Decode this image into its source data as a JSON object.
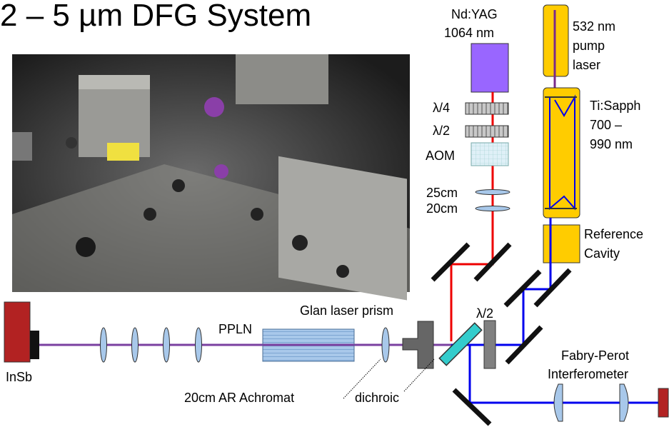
{
  "title": "2 – 5 µm DFG System",
  "labels": {
    "ndyag_line1": "Nd:YAG",
    "ndyag_line2": "1064 nm",
    "pump_line1": "532 nm",
    "pump_line2": "pump",
    "pump_line3": "laser",
    "tisapph_line1": "Ti:Sapph",
    "tisapph_line2": "700 –",
    "tisapph_line3": "990 nm",
    "quarter_wave": "λ/4",
    "half_wave_top": "λ/2",
    "aom": "AOM",
    "lens_25cm": "25cm",
    "lens_20cm": "20cm",
    "ref_cavity_line1": "Reference",
    "ref_cavity_line2": "Cavity",
    "glan_prism": "Glan laser prism",
    "half_wave_bottom": "λ/2",
    "ppln": "PPLN",
    "insb": "InSb",
    "achromat": "20cm AR Achromat",
    "dichroic": "dichroic",
    "fabry_perot_line1": "Fabry-Perot",
    "fabry_perot_line2": "Interferometer"
  },
  "colors": {
    "ndyag_laser": "#9966ff",
    "pump_laser": "#ffcc00",
    "tisapph_beam": "#0000ee",
    "ndyag_beam": "#ee0000",
    "idler_beam": "#7a3fa0",
    "insb_detector": "#b22222",
    "ppln_crystal": "#a8c8ea",
    "dichroic": "#33cccc"
  }
}
